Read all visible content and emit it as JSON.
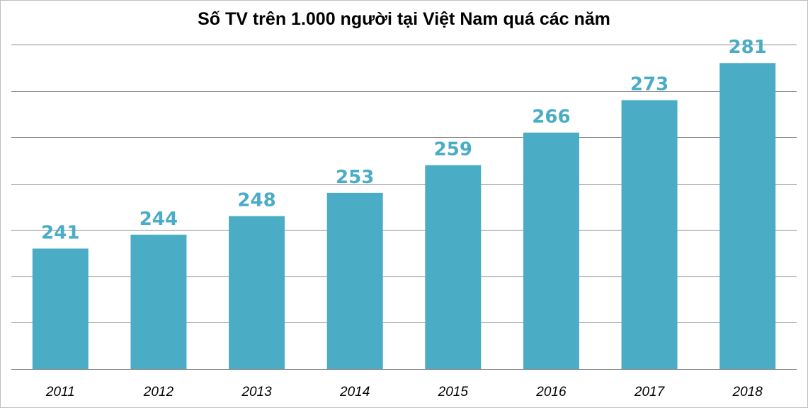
{
  "chart_data": {
    "type": "bar",
    "title": "Số TV trên 1.000 người tại Việt Nam quá các năm",
    "categories": [
      "2011",
      "2012",
      "2013",
      "2014",
      "2015",
      "2016",
      "2017",
      "2018"
    ],
    "values": [
      241,
      244,
      248,
      253,
      259,
      266,
      273,
      281
    ],
    "xlabel": "",
    "ylabel": "",
    "ylim": [
      215,
      285
    ],
    "y_axis_labels_shown": false,
    "grid": true,
    "data_labels": true,
    "colors": {
      "bar": "#4bacc6",
      "data_label": "#4bacc6",
      "grid": "#8c8c8c",
      "title": "#000000",
      "border": "#bfbfbf"
    }
  }
}
